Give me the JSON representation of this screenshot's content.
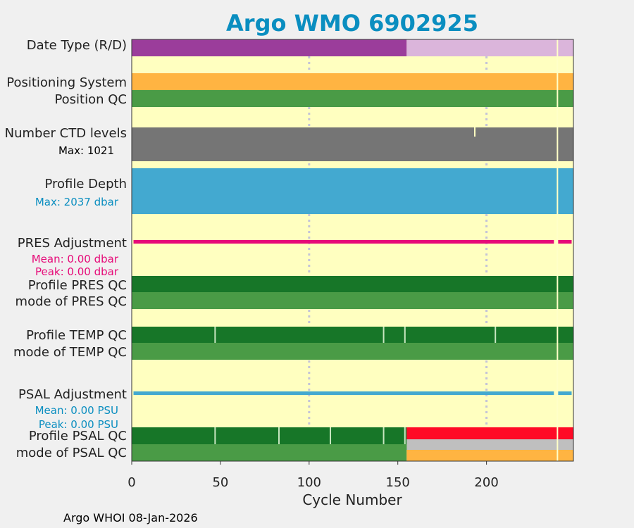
{
  "chart_data": {
    "type": "table",
    "title": "Argo WMO 6902925",
    "xlabel": "Cycle Number",
    "xlim": [
      0,
      249
    ],
    "xticks": [
      0,
      50,
      100,
      150,
      200
    ],
    "gridlines_x": [
      100,
      200
    ],
    "footer": "Argo WHOI 08-Jan-2026",
    "colors": {
      "background": "#ffffc0",
      "realtime": "#9b3d9b",
      "delayed": "#dbb5db",
      "orange": "#ffb442",
      "qc_good": "#4a9b46",
      "qc_dark": "#177628",
      "ctd": "#757575",
      "depth": "#43a9d0",
      "pres_adj": "#e60a78",
      "psal_adj": "#43a9d0",
      "bad": "#ff0a26",
      "grey": "#bfbfbf",
      "title": "#0a8ec0",
      "pres_text": "#e60a78",
      "psal_text": "#0a8ec0"
    },
    "rows": {
      "date_type": {
        "label": "Date Type (R/D)",
        "segments": [
          {
            "start": 0,
            "end": 155,
            "value": "R"
          },
          {
            "start": 155,
            "end": 249,
            "value": "D"
          }
        ]
      },
      "positioning_system": {
        "label": "Positioning System",
        "value": "GPS",
        "range": [
          0,
          249
        ]
      },
      "position_qc": {
        "label": "Position QC",
        "value": "1",
        "range": [
          0,
          249
        ]
      },
      "ctd_levels": {
        "label": "Number CTD levels",
        "max_text": "Max: 1021",
        "max": 1021,
        "typical": 1000,
        "dip_cycle": 193
      },
      "profile_depth": {
        "label": "Profile Depth",
        "max_text": "Max: 2037 dbar",
        "max": 2037,
        "typical": 2000
      },
      "pres_adjustment": {
        "label": "PRES Adjustment",
        "mean_text": "Mean: 0.00 dbar",
        "peak_text": "Peak: 0.00 dbar",
        "mean": 0.0,
        "peak": 0.0,
        "range": [
          1,
          248
        ],
        "missing_cycles": [
          238,
          239
        ]
      },
      "profile_pres_qc": {
        "label": "Profile PRES QC",
        "value": "A",
        "range": [
          0,
          249
        ]
      },
      "mode_pres_qc": {
        "label": "mode of PRES QC",
        "value": "1",
        "range": [
          0,
          249
        ]
      },
      "profile_temp_qc": {
        "label": "Profile TEMP QC",
        "value": "A",
        "range": [
          0,
          249
        ],
        "missing_cycles": [
          47,
          142,
          154,
          205
        ]
      },
      "mode_temp_qc": {
        "label": "mode of TEMP QC",
        "value": "1",
        "range": [
          0,
          249
        ]
      },
      "psal_adjustment": {
        "label": "PSAL Adjustment",
        "mean_text": "Mean: 0.00 PSU",
        "peak_text": "Peak: 0.00 PSU",
        "mean": 0.0,
        "peak": 0.0,
        "range": [
          1,
          248
        ],
        "missing_cycles": [
          238,
          239
        ]
      },
      "profile_psal_qc": {
        "label": "Profile PSAL QC",
        "segments": [
          {
            "start": 0,
            "end": 155,
            "value": "A"
          },
          {
            "start": 155,
            "end": 249,
            "value": "F"
          }
        ],
        "missing_cycles": [
          47,
          83,
          112,
          142,
          154
        ]
      },
      "mode_psal_qc": {
        "label": "mode of PSAL QC",
        "segments": [
          {
            "start": 0,
            "end": 155,
            "value": "1"
          },
          {
            "start": 155,
            "end": 249,
            "value": "4/3"
          }
        ]
      }
    },
    "gap_cycle": 240
  }
}
